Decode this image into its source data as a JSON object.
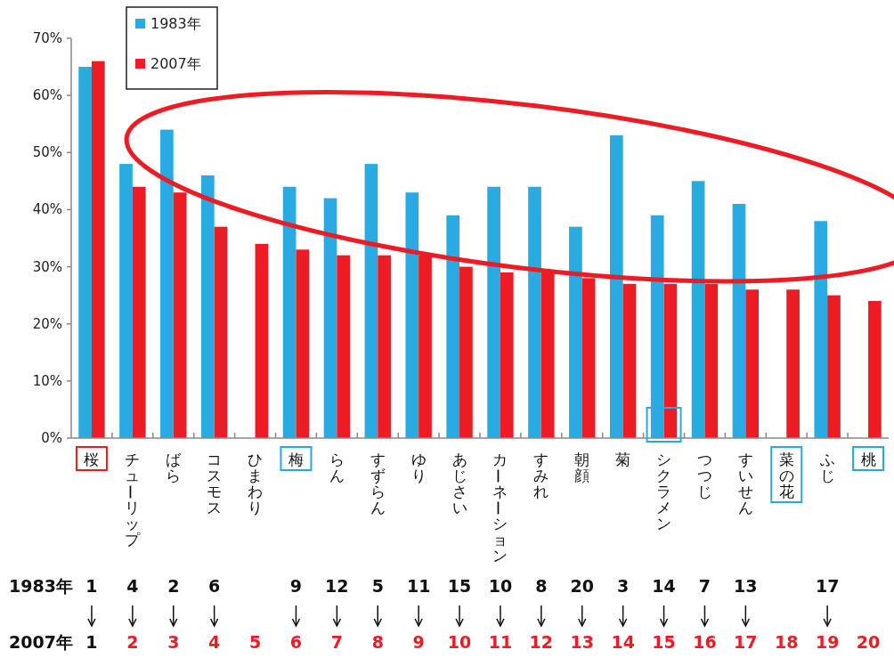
{
  "chart_data": {
    "type": "bar",
    "categories": [
      "桜",
      "チューリップ",
      "ばら",
      "コスモス",
      "ひまわり",
      "梅",
      "らん",
      "すずらん",
      "ゆり",
      "あじさい",
      "カーネーション",
      "すみれ",
      "朝顔",
      "菊",
      "シクラメン",
      "つつじ",
      "すいせん",
      "菜の花",
      "ふじ",
      "桃"
    ],
    "series": [
      {
        "name": "1983年",
        "color": "#29abe2",
        "values": [
          65,
          48,
          54,
          46,
          null,
          44,
          42,
          48,
          43,
          39,
          44,
          44,
          37,
          53,
          39,
          45,
          41,
          null,
          38,
          null
        ]
      },
      {
        "name": "2007年",
        "color": "#ed1c24",
        "values": [
          66,
          44,
          43,
          37,
          34,
          33,
          32,
          32,
          32,
          30,
          29,
          29,
          28,
          27,
          27,
          27,
          26,
          26,
          25,
          24
        ]
      }
    ],
    "ylim": [
      0,
      70
    ],
    "yticks": [
      {
        "value": 0,
        "label": "0%"
      },
      {
        "value": 10,
        "label": "10%"
      },
      {
        "value": 20,
        "label": "20%"
      },
      {
        "value": 30,
        "label": "30%"
      },
      {
        "value": 40,
        "label": "40%"
      },
      {
        "value": 50,
        "label": "50%"
      },
      {
        "value": 60,
        "label": "60%"
      },
      {
        "value": 70,
        "label": "70%"
      }
    ],
    "grid": false,
    "legend": "top left",
    "annotations": [
      "1983年",
      "1",
      "4",
      "2",
      "6",
      "9",
      "12",
      "5",
      "11",
      "15",
      "10",
      "8",
      "20",
      "3",
      "14",
      "7",
      "13",
      "17",
      "2007年",
      "1",
      "2",
      "3",
      "4",
      "5",
      "6",
      "7",
      "8",
      "9",
      "10",
      "11",
      "12",
      "13",
      "14",
      "15",
      "16",
      "17",
      "18",
      "19",
      "20"
    ]
  }
}
